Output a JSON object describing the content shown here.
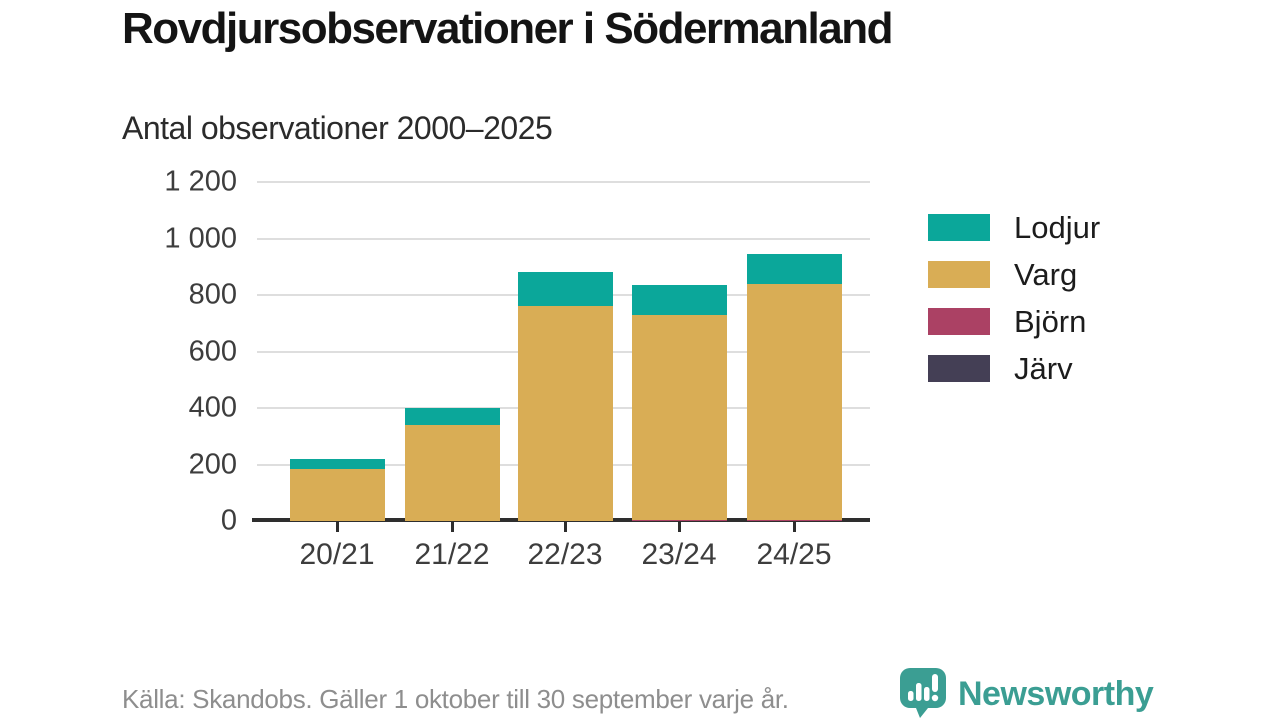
{
  "header": {
    "title": "Rovdjursobservationer i Södermanland"
  },
  "chart_data": {
    "type": "bar",
    "stacked": true,
    "title": "Rovdjursobservationer i Södermanland",
    "subtitle": "Antal observationer 2000–2025",
    "categories": [
      "20/21",
      "21/22",
      "22/23",
      "23/24",
      "24/25"
    ],
    "series": [
      {
        "name": "Järv",
        "color": "#443f55",
        "values": [
          0,
          0,
          0,
          0,
          0
        ]
      },
      {
        "name": "Björn",
        "color": "#ab4164",
        "values": [
          0,
          0,
          0,
          5,
          5
        ]
      },
      {
        "name": "Varg",
        "color": "#d9ad55",
        "values": [
          185,
          340,
          760,
          725,
          835
        ]
      },
      {
        "name": "Lodjur",
        "color": "#0ba79a",
        "values": [
          35,
          60,
          120,
          105,
          105
        ]
      }
    ],
    "totals": [
      220,
      400,
      880,
      835,
      945
    ],
    "legend_order": [
      "Lodjur",
      "Varg",
      "Björn",
      "Järv"
    ],
    "legend_position": "right",
    "grid": true,
    "xlabel": "",
    "ylabel": "",
    "ylim": [
      0,
      1200
    ],
    "yticks": [
      {
        "value": 0,
        "label": "0"
      },
      {
        "value": 200,
        "label": "200"
      },
      {
        "value": 400,
        "label": "400"
      },
      {
        "value": 600,
        "label": "600"
      },
      {
        "value": 800,
        "label": "800"
      },
      {
        "value": 1000,
        "label": "1 000"
      },
      {
        "value": 1200,
        "label": "1 200"
      }
    ]
  },
  "footer": {
    "source": "Källa: Skandobs. Gäller 1 oktober till 30 september varje år.",
    "brand": "Newsworthy"
  },
  "colors": {
    "lodjur": "#0ba79a",
    "varg": "#d9ad55",
    "bjorn": "#ab4164",
    "jarv": "#443f55",
    "axis": "#2e2e2e",
    "gridline": "#dedede",
    "brand_teal": "#3b9e93",
    "source_gray": "#8e8e8e"
  }
}
